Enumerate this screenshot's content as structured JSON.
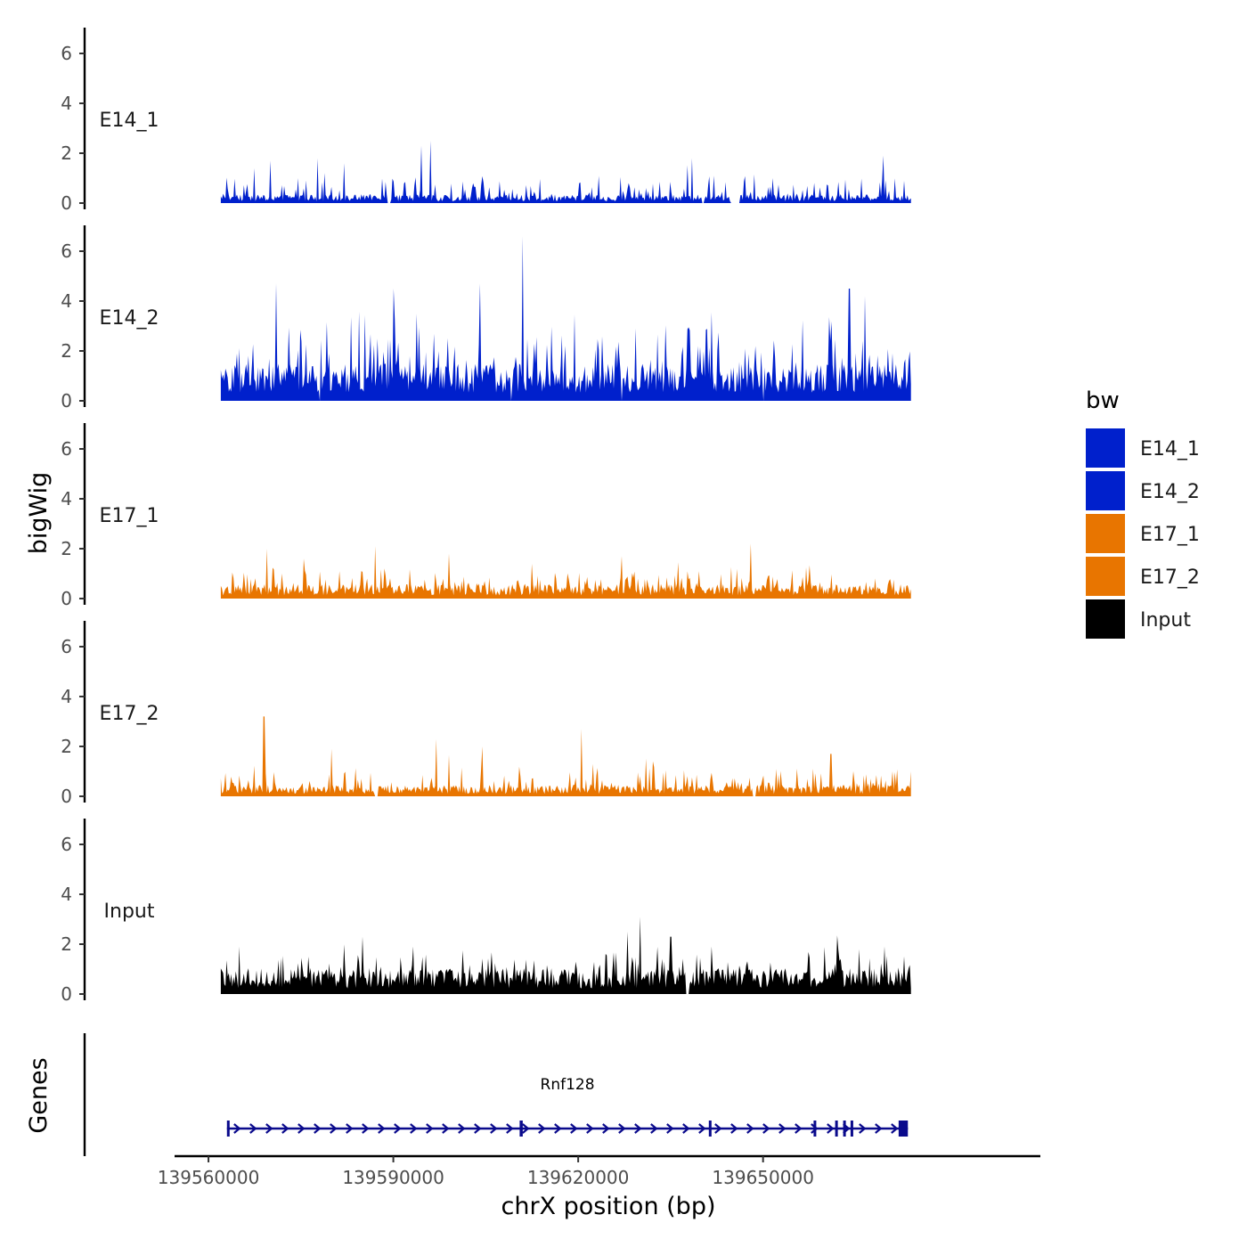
{
  "chart_data": {
    "type": "area",
    "ylabel": "bigWig",
    "xlabel": "chrX position (bp)",
    "chromosome": "chrX",
    "xlim": [
      139554500,
      139695000
    ],
    "data_range": [
      139562000,
      139674000
    ],
    "ylim": [
      0,
      7
    ],
    "yticks": [
      "0",
      "2",
      "4",
      "6"
    ],
    "xticks": [
      {
        "value": 139560000,
        "label": "139560000"
      },
      {
        "value": 139590000,
        "label": "139590000"
      },
      {
        "value": 139620000,
        "label": "139620000"
      },
      {
        "value": 139650000,
        "label": "139650000"
      }
    ],
    "tracks": [
      {
        "name": "E14_1",
        "label": "E14_1",
        "color": "#0020CC",
        "base": 0.3,
        "var": 0.9,
        "max": 2.5,
        "peaks": [
          [
            139596000,
            2.5
          ],
          [
            139594500,
            2.3
          ],
          [
            139638500,
            1.8
          ],
          [
            139669500,
            1.9
          ],
          [
            139570000,
            1.7
          ],
          [
            139582000,
            1.6
          ]
        ],
        "gaps": [
          [
            139589000,
            139589500
          ],
          [
            139640000,
            139640500
          ],
          [
            139644800,
            139646200
          ]
        ]
      },
      {
        "name": "E14_2",
        "label": "E14_2",
        "color": "#0020CC",
        "base": 1.3,
        "var": 2.2,
        "max": 6.6,
        "peaks": [
          [
            139611000,
            6.6
          ],
          [
            139604000,
            4.7
          ],
          [
            139571000,
            4.7
          ],
          [
            139664000,
            4.5
          ],
          [
            139590000,
            4.5
          ],
          [
            139666500,
            4.2
          ]
        ],
        "gaps": [
          [
            139578000,
            139578200
          ],
          [
            139609000,
            139609200
          ],
          [
            139627000,
            139627200
          ],
          [
            139650000,
            139650200
          ]
        ]
      },
      {
        "name": "E17_1",
        "label": "E17_1",
        "color": "#E87500",
        "base": 0.5,
        "var": 0.8,
        "max": 2.2,
        "peaks": [
          [
            139648000,
            2.2
          ],
          [
            139587000,
            2.1
          ],
          [
            139569500,
            2.0
          ],
          [
            139599000,
            1.8
          ],
          [
            139627000,
            1.7
          ],
          [
            139575500,
            1.6
          ]
        ],
        "gaps": []
      },
      {
        "name": "E17_2",
        "label": "E17_2",
        "color": "#E87500",
        "base": 0.4,
        "var": 0.8,
        "max": 3.2,
        "peaks": [
          [
            139569000,
            3.2
          ],
          [
            139620500,
            2.7
          ],
          [
            139604500,
            2.0
          ],
          [
            139597000,
            2.3
          ],
          [
            139661000,
            1.7
          ],
          [
            139580000,
            1.9
          ]
        ],
        "gaps": [
          [
            139587000,
            139587600
          ],
          [
            139648300,
            139648800
          ]
        ]
      },
      {
        "name": "Input",
        "label": "Input",
        "color": "#000000",
        "base": 0.9,
        "var": 1.0,
        "max": 3.1,
        "peaks": [
          [
            139630000,
            3.1
          ],
          [
            139635000,
            2.3
          ],
          [
            139628000,
            2.5
          ],
          [
            139585000,
            2.3
          ],
          [
            139565000,
            1.9
          ],
          [
            139662000,
            2.2
          ]
        ],
        "gaps": [
          [
            139637500,
            139638000
          ]
        ]
      }
    ],
    "legend": {
      "title": "bw",
      "position": "right",
      "items": [
        {
          "label": "E14_1",
          "color": "#0020CC"
        },
        {
          "label": "E14_2",
          "color": "#0020CC"
        },
        {
          "label": "E17_1",
          "color": "#E87500"
        },
        {
          "label": "E17_2",
          "color": "#E87500"
        },
        {
          "label": "Input",
          "color": "#000000"
        }
      ]
    },
    "genes_panel": {
      "ylabel": "Genes",
      "color": "#0A0A8C",
      "gene": {
        "name": "Rnf128",
        "start": 139563000,
        "end": 139673500,
        "strand": "+",
        "exons": [
          [
            139563000,
            139563400
          ],
          [
            139610500,
            139611000
          ],
          [
            139641200,
            139641500
          ],
          [
            139658200,
            139658400
          ],
          [
            139661700,
            139661900
          ],
          [
            139663000,
            139663200
          ],
          [
            139664200,
            139664400
          ],
          [
            139672000,
            139673500
          ]
        ]
      }
    }
  }
}
